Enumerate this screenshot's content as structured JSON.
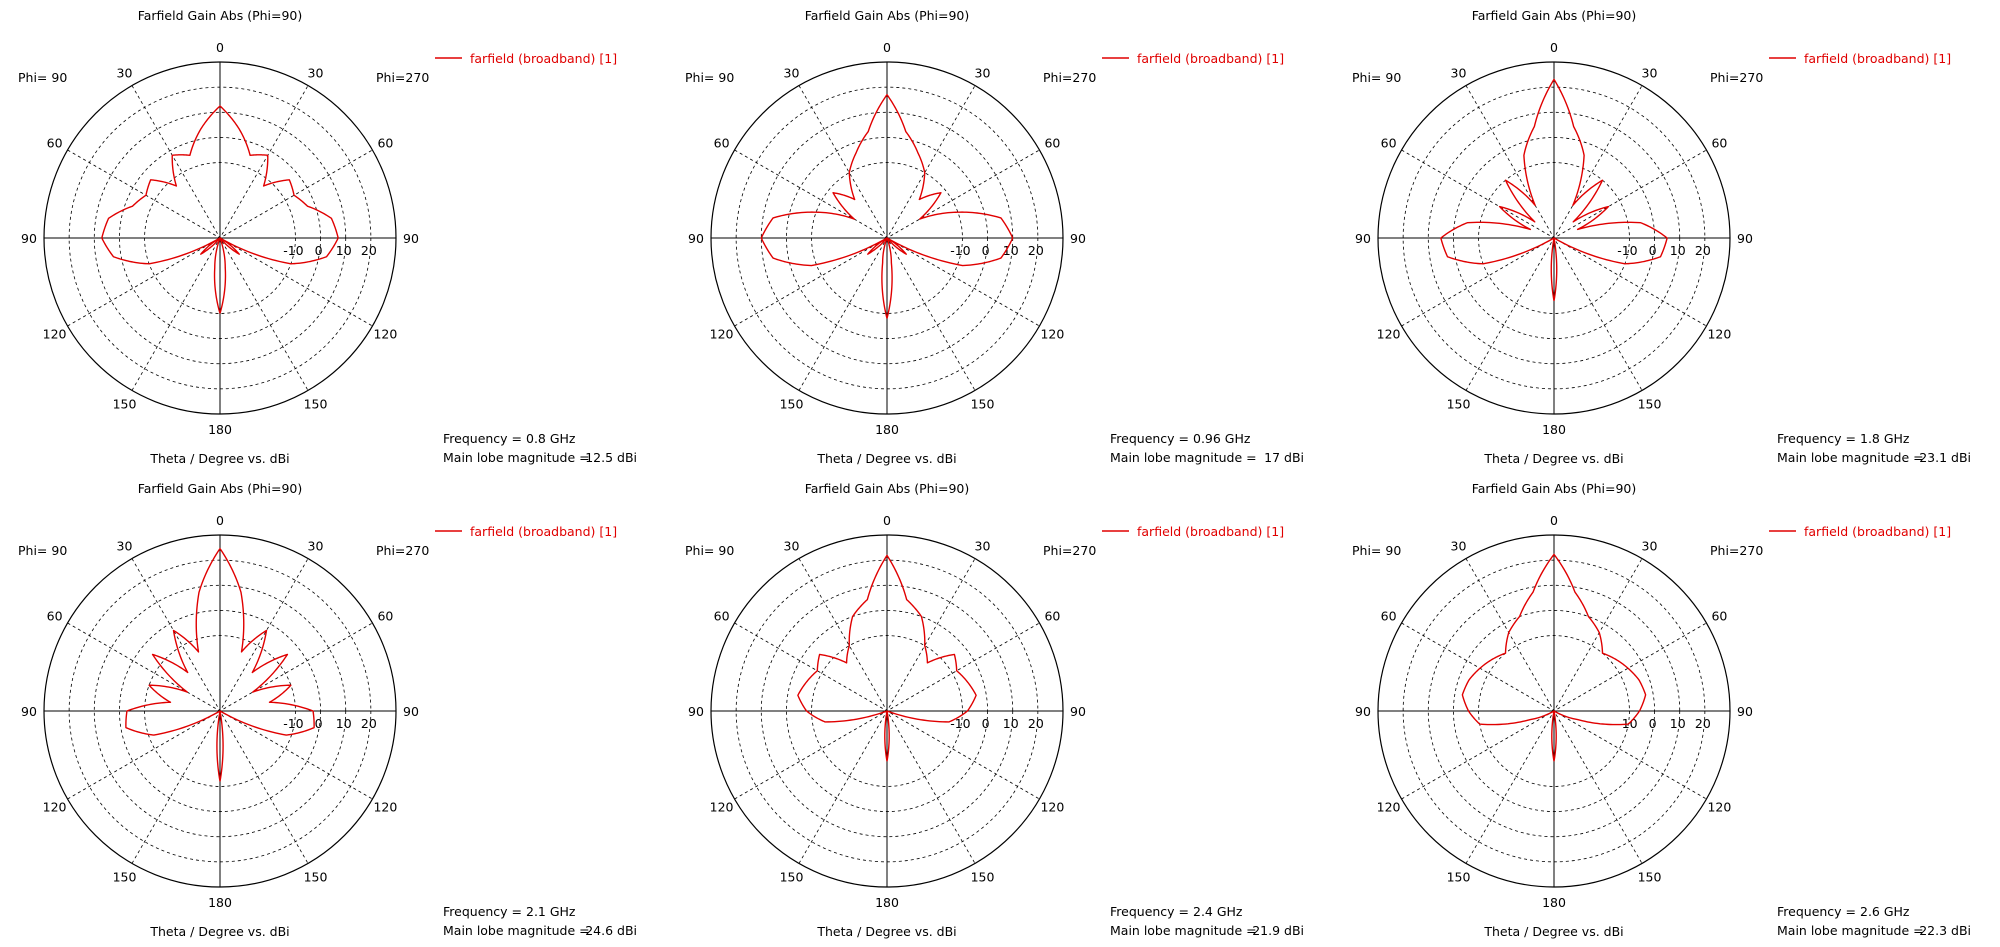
{
  "colors": {
    "trace": "#e00000",
    "axis": "#000000",
    "grid": "#000000"
  },
  "chart_data": [
    {
      "type": "polar",
      "title": "Farfield Gain Abs (Phi=90)",
      "xlabel": "Theta / Degree vs. dBi",
      "left_label": "Phi= 90",
      "right_label": "Phi=270",
      "legend": "farfield (broadband) [1]",
      "legend_placement": "top-right",
      "frequency_label": "Frequency = 0.8 GHz",
      "mainlobe_label": "Main lobe magnitude =",
      "mainlobe_value": "12.5 dBi",
      "rlim": [
        -40,
        30
      ],
      "radial_ticks": [
        "-10",
        "0",
        "10",
        "20"
      ],
      "angle_ticks": [
        "0",
        "30",
        "60",
        "90",
        "120",
        "150",
        "180",
        "150",
        "120",
        "90",
        "60",
        "30"
      ],
      "main_lobe": 12.5,
      "series": [
        {
          "name": "farfield (broadband) [1]",
          "theta": [
            -180,
            -170,
            -160,
            -150,
            -140,
            -130,
            -120,
            -110,
            -100,
            -90,
            -80,
            -70,
            -60,
            -50,
            -40,
            -30,
            -20,
            -10,
            0,
            10,
            20,
            30,
            40,
            50,
            60,
            70,
            80,
            90,
            100,
            110,
            120,
            130,
            140,
            150,
            160,
            170,
            180
          ],
          "gain": [
            -10,
            -28,
            -40,
            -40,
            -40,
            -30,
            -40,
            -10,
            3,
            7,
            5,
            -3,
            -6,
            -4,
            -13,
            -2,
            -5,
            4,
            12.5,
            4,
            -5,
            -2,
            -13,
            -4,
            -6,
            -3,
            5,
            7,
            3,
            -10,
            -40,
            -30,
            -40,
            -40,
            -40,
            -28,
            -10
          ]
        }
      ]
    },
    {
      "type": "polar",
      "title": "Farfield Gain Abs (Phi=90)",
      "xlabel": "Theta / Degree vs. dBi",
      "left_label": "Phi= 90",
      "right_label": "Phi=270",
      "legend": "farfield (broadband) [1]",
      "legend_placement": "top-right",
      "frequency_label": "Frequency = 0.96 GHz",
      "mainlobe_label": "Main lobe magnitude =",
      "mainlobe_value": "17 dBi",
      "rlim": [
        -40,
        30
      ],
      "radial_ticks": [
        "-10",
        "0",
        "10",
        "20"
      ],
      "angle_ticks": [
        "0",
        "30",
        "60",
        "90",
        "120",
        "150",
        "180",
        "150",
        "120",
        "90",
        "60",
        "30"
      ],
      "main_lobe": 17,
      "series": [
        {
          "name": "farfield (broadband) [1]",
          "theta": [
            -180,
            -170,
            -160,
            -150,
            -140,
            -130,
            -120,
            -110,
            -100,
            -90,
            -80,
            -70,
            -60,
            -50,
            -40,
            -30,
            -20,
            -10,
            0,
            10,
            20,
            30,
            40,
            50,
            60,
            70,
            80,
            90,
            100,
            110,
            120,
            130,
            140,
            150,
            160,
            170,
            180
          ],
          "gain": [
            -8,
            -30,
            -40,
            -40,
            -40,
            -30,
            -40,
            -8,
            6,
            10,
            6,
            -10,
            -25,
            -12,
            -20,
            -10,
            -4,
            3,
            17,
            3,
            -4,
            -10,
            -20,
            -12,
            -25,
            -10,
            6,
            10,
            6,
            -8,
            -40,
            -30,
            -40,
            -40,
            -40,
            -30,
            -8
          ]
        }
      ]
    },
    {
      "type": "polar",
      "title": "Farfield Gain Abs (Phi=90)",
      "xlabel": "Theta / Degree vs. dBi",
      "left_label": "Phi= 90",
      "right_label": "Phi=270",
      "legend": "farfield (broadband) [1]",
      "legend_placement": "top-right",
      "frequency_label": "Frequency = 1.8 GHz",
      "mainlobe_label": "Main lobe magnitude =",
      "mainlobe_value": "23.1 dBi",
      "rlim": [
        -40,
        30
      ],
      "radial_ticks": [
        "-10",
        "0",
        "10",
        "20"
      ],
      "angle_ticks": [
        "0",
        "30",
        "60",
        "90",
        "120",
        "150",
        "180",
        "150",
        "120",
        "90",
        "60",
        "30"
      ],
      "main_lobe": 23.1,
      "series": [
        {
          "name": "farfield (broadband) [1]",
          "theta": [
            -180,
            -170,
            -160,
            -150,
            -140,
            -130,
            -120,
            -110,
            -100,
            -90,
            -80,
            -70,
            -60,
            -50,
            -40,
            -30,
            -20,
            -10,
            0,
            10,
            20,
            30,
            40,
            50,
            60,
            70,
            80,
            90,
            100,
            110,
            120,
            130,
            140,
            150,
            160,
            170,
            180
          ],
          "gain": [
            -15,
            -40,
            -40,
            -40,
            -40,
            -40,
            -40,
            -10,
            3,
            5,
            -5,
            -30,
            -15,
            -30,
            -10,
            -25,
            -5,
            5,
            23.1,
            5,
            -5,
            -25,
            -10,
            -30,
            -15,
            -30,
            -5,
            5,
            3,
            -10,
            -40,
            -40,
            -40,
            -40,
            -40,
            -40,
            -15
          ]
        }
      ]
    },
    {
      "type": "polar",
      "title": "Farfield Gain Abs (Phi=90)",
      "xlabel": "Theta / Degree vs. dBi",
      "left_label": "Phi= 90",
      "right_label": "Phi=270",
      "legend": "farfield (broadband) [1]",
      "legend_placement": "top-right",
      "frequency_label": "Frequency = 2.1 GHz",
      "mainlobe_label": "Main lobe magnitude =",
      "mainlobe_value": "24.6 dBi",
      "rlim": [
        -40,
        30
      ],
      "radial_ticks": [
        "-10",
        "0",
        "10",
        "20"
      ],
      "angle_ticks": [
        "0",
        "30",
        "60",
        "90",
        "120",
        "150",
        "180",
        "150",
        "120",
        "90",
        "60",
        "30"
      ],
      "main_lobe": 24.6,
      "series": [
        {
          "name": "farfield (broadband) [1]",
          "theta": [
            -180,
            -170,
            -160,
            -150,
            -140,
            -130,
            -120,
            -110,
            -100,
            -90,
            -80,
            -70,
            -60,
            -50,
            -40,
            -30,
            -20,
            -10,
            0,
            10,
            20,
            30,
            40,
            50,
            60,
            70,
            80,
            90,
            100,
            110,
            120,
            130,
            140,
            150,
            160,
            170,
            180
          ],
          "gain": [
            -12,
            -40,
            -40,
            -40,
            -40,
            -40,
            -40,
            -12,
            -2,
            -3,
            -20,
            -10,
            -25,
            -5,
            -20,
            -3,
            -15,
            8,
            24.6,
            8,
            -15,
            -3,
            -20,
            -5,
            -25,
            -10,
            -20,
            -3,
            -2,
            -12,
            -40,
            -40,
            -40,
            -40,
            -40,
            -40,
            -12
          ]
        }
      ]
    },
    {
      "type": "polar",
      "title": "Farfield Gain Abs (Phi=90)",
      "xlabel": "Theta / Degree vs. dBi",
      "left_label": "Phi= 90",
      "right_label": "Phi=270",
      "legend": "farfield (broadband) [1]",
      "legend_placement": "top-right",
      "frequency_label": "Frequency = 2.4 GHz",
      "mainlobe_label": "Main lobe magnitude =",
      "mainlobe_value": "21.9 dBi",
      "rlim": [
        -40,
        30
      ],
      "radial_ticks": [
        "-10",
        "0",
        "10",
        "20"
      ],
      "angle_ticks": [
        "0",
        "30",
        "60",
        "90",
        "120",
        "150",
        "180",
        "150",
        "120",
        "90",
        "60",
        "30"
      ],
      "main_lobe": 21.9,
      "series": [
        {
          "name": "farfield (broadband) [1]",
          "theta": [
            -180,
            -170,
            -160,
            -150,
            -140,
            -130,
            -120,
            -110,
            -100,
            -90,
            -80,
            -70,
            -60,
            -50,
            -40,
            -30,
            -20,
            -10,
            0,
            10,
            20,
            30,
            40,
            50,
            60,
            70,
            80,
            90,
            100,
            110,
            120,
            130,
            140,
            150,
            160,
            170,
            180
          ],
          "gain": [
            -20,
            -40,
            -40,
            -40,
            -40,
            -40,
            -40,
            -40,
            -15,
            -8,
            -4,
            -6,
            -8,
            -5,
            -15,
            -10,
            0,
            5,
            21.9,
            5,
            0,
            -10,
            -15,
            -5,
            -8,
            -6,
            -4,
            -8,
            -15,
            -40,
            -40,
            -40,
            -40,
            -40,
            -40,
            -40,
            -20
          ]
        }
      ]
    },
    {
      "type": "polar",
      "title": "Farfield Gain Abs (Phi=90)",
      "xlabel": "Theta / Degree vs. dBi",
      "left_label": "Phi= 90",
      "right_label": "Phi=270",
      "legend": "farfield (broadband) [1]",
      "legend_placement": "top-right",
      "frequency_label": "Frequency = 2.6 GHz",
      "mainlobe_label": "Main lobe magnitude =",
      "mainlobe_value": "22.3 dBi",
      "rlim": [
        -40,
        30
      ],
      "radial_ticks": [
        "-10",
        "0",
        "10",
        "20"
      ],
      "angle_ticks": [
        "0",
        "30",
        "60",
        "90",
        "120",
        "150",
        "180",
        "150",
        "120",
        "90",
        "60",
        "30"
      ],
      "main_lobe": 22.3,
      "series": [
        {
          "name": "farfield (broadband) [1]",
          "theta": [
            -180,
            -170,
            -160,
            -150,
            -140,
            -130,
            -120,
            -110,
            -100,
            -90,
            -80,
            -70,
            -60,
            -50,
            -40,
            -30,
            -20,
            -10,
            0,
            10,
            20,
            30,
            40,
            50,
            60,
            70,
            80,
            90,
            100,
            110,
            120,
            130,
            140,
            150,
            160,
            170,
            180
          ],
          "gain": [
            -20,
            -40,
            -40,
            -40,
            -40,
            -40,
            -40,
            -30,
            -10,
            -6,
            -3,
            -4,
            -6,
            -8,
            -10,
            -4,
            0,
            8,
            22.3,
            8,
            0,
            -4,
            -10,
            -8,
            -6,
            -4,
            -3,
            -6,
            -10,
            -30,
            -40,
            -40,
            -40,
            -40,
            -40,
            -40,
            -20
          ]
        }
      ]
    }
  ]
}
